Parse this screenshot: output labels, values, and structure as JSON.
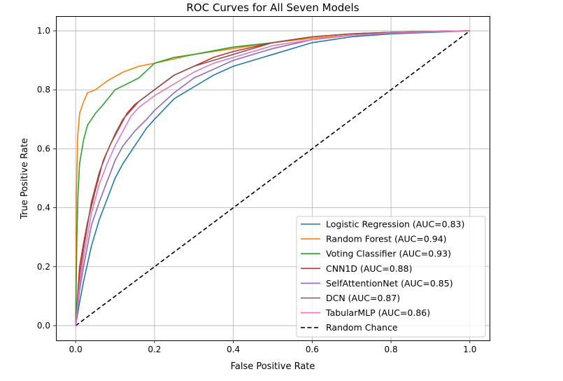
{
  "chart_data": {
    "type": "line",
    "title": "ROC Curves for All Seven Models",
    "xlabel": "False Positive Rate",
    "ylabel": "True Positive Rate",
    "xlim": [
      -0.05,
      1.05
    ],
    "ylim": [
      -0.05,
      1.05
    ],
    "xticks": [
      "0.0",
      "0.2",
      "0.4",
      "0.6",
      "0.8",
      "1.0"
    ],
    "yticks": [
      "0.0",
      "0.2",
      "0.4",
      "0.6",
      "0.8",
      "1.0"
    ],
    "grid": true,
    "legend_position": "lower-right",
    "series": [
      {
        "name": "Logistic Regression (AUC=0.83)",
        "color": "#1f77b4",
        "x": [
          0,
          0.01,
          0.02,
          0.04,
          0.06,
          0.08,
          0.1,
          0.12,
          0.15,
          0.18,
          0.2,
          0.25,
          0.3,
          0.35,
          0.4,
          0.5,
          0.6,
          0.7,
          0.8,
          0.9,
          1.0
        ],
        "y": [
          0,
          0.08,
          0.15,
          0.27,
          0.36,
          0.43,
          0.5,
          0.55,
          0.61,
          0.67,
          0.7,
          0.77,
          0.81,
          0.85,
          0.88,
          0.92,
          0.96,
          0.98,
          0.99,
          0.995,
          1.0
        ]
      },
      {
        "name": "Random Forest (AUC=0.94)",
        "color": "#ff7f0e",
        "x": [
          0,
          0.002,
          0.005,
          0.01,
          0.02,
          0.03,
          0.05,
          0.08,
          0.12,
          0.16,
          0.2,
          0.3,
          0.4,
          0.5,
          0.6,
          0.7,
          0.8,
          0.9,
          1.0
        ],
        "y": [
          0,
          0.45,
          0.64,
          0.72,
          0.76,
          0.79,
          0.8,
          0.83,
          0.86,
          0.88,
          0.89,
          0.92,
          0.94,
          0.96,
          0.975,
          0.985,
          0.993,
          0.998,
          1.0
        ],
        "ys": [
          0,
          0.45,
          0.65,
          0.72,
          0.76,
          0.78,
          0.8,
          0.83,
          0.86,
          0.88,
          0.89,
          0.92,
          0.94,
          0.96,
          0.975,
          0.985,
          0.993,
          0.998,
          1.0
        ]
      },
      {
        "name": "Voting Classifier (AUC=0.93)",
        "color": "#2ca02c",
        "x": [
          0,
          0.003,
          0.006,
          0.01,
          0.02,
          0.03,
          0.05,
          0.07,
          0.1,
          0.13,
          0.16,
          0.2,
          0.25,
          0.3,
          0.4,
          0.5,
          0.6,
          0.7,
          0.8,
          0.9,
          1.0
        ],
        "y": [
          0,
          0.3,
          0.45,
          0.55,
          0.63,
          0.68,
          0.72,
          0.75,
          0.8,
          0.82,
          0.84,
          0.89,
          0.91,
          0.92,
          0.945,
          0.96,
          0.98,
          0.99,
          0.995,
          0.998,
          1.0
        ]
      },
      {
        "name": "CNN1D (AUC=0.88)",
        "color": "#d62728",
        "x": [
          0,
          0.01,
          0.02,
          0.03,
          0.05,
          0.07,
          0.09,
          0.11,
          0.13,
          0.15,
          0.18,
          0.2,
          0.25,
          0.3,
          0.35,
          0.4,
          0.5,
          0.6,
          0.7,
          0.8,
          0.9,
          1.0
        ],
        "y": [
          0,
          0.2,
          0.28,
          0.35,
          0.46,
          0.56,
          0.62,
          0.67,
          0.72,
          0.75,
          0.78,
          0.8,
          0.85,
          0.88,
          0.91,
          0.93,
          0.96,
          0.98,
          0.99,
          0.995,
          0.998,
          1.0
        ]
      },
      {
        "name": "SelfAttentionNet (AUC=0.85)",
        "color": "#9467bd",
        "x": [
          0,
          0.01,
          0.02,
          0.04,
          0.06,
          0.08,
          0.1,
          0.12,
          0.15,
          0.18,
          0.2,
          0.25,
          0.3,
          0.35,
          0.4,
          0.5,
          0.6,
          0.7,
          0.8,
          0.9,
          1.0
        ],
        "y": [
          0,
          0.12,
          0.2,
          0.34,
          0.42,
          0.49,
          0.56,
          0.61,
          0.66,
          0.7,
          0.73,
          0.79,
          0.84,
          0.87,
          0.9,
          0.94,
          0.97,
          0.985,
          0.993,
          0.997,
          1.0
        ]
      },
      {
        "name": "DCN (AUC=0.87)",
        "color": "#8c564b",
        "x": [
          0,
          0.01,
          0.02,
          0.04,
          0.06,
          0.08,
          0.1,
          0.12,
          0.14,
          0.16,
          0.18,
          0.2,
          0.25,
          0.3,
          0.35,
          0.4,
          0.5,
          0.6,
          0.7,
          0.8,
          0.9,
          1.0
        ],
        "y": [
          0,
          0.17,
          0.26,
          0.42,
          0.52,
          0.59,
          0.65,
          0.7,
          0.73,
          0.76,
          0.78,
          0.8,
          0.85,
          0.88,
          0.9,
          0.92,
          0.96,
          0.98,
          0.99,
          0.995,
          0.998,
          1.0
        ]
      },
      {
        "name": "TabularMLP (AUC=0.86)",
        "color": "#e377c2",
        "x": [
          0,
          0.01,
          0.02,
          0.04,
          0.06,
          0.08,
          0.1,
          0.12,
          0.14,
          0.16,
          0.2,
          0.25,
          0.3,
          0.35,
          0.4,
          0.5,
          0.6,
          0.7,
          0.8,
          0.9,
          1.0
        ],
        "y": [
          0,
          0.14,
          0.23,
          0.38,
          0.48,
          0.55,
          0.61,
          0.66,
          0.71,
          0.74,
          0.78,
          0.82,
          0.86,
          0.89,
          0.91,
          0.95,
          0.97,
          0.985,
          0.993,
          0.997,
          1.0
        ]
      },
      {
        "name": "Random Chance",
        "color": "#000000",
        "dashed": true,
        "x": [
          0,
          1
        ],
        "y": [
          0,
          1
        ]
      }
    ]
  }
}
